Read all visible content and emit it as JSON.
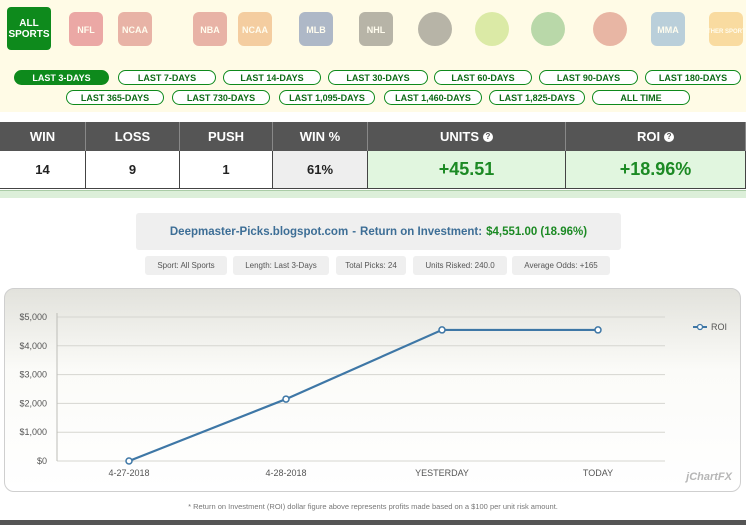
{
  "sports": {
    "active_label_line1": "ALL",
    "active_label_line2": "SPORTS",
    "items": [
      {
        "name": "nfl-icon",
        "text": "NFL",
        "color": "#c8102e"
      },
      {
        "name": "ncaa-football-icon",
        "text": "NCAA",
        "color": "#c03030"
      },
      {
        "name": "nba-icon",
        "text": "NBA",
        "color": "#c03030"
      },
      {
        "name": "ncaa-basketball-icon",
        "text": "NCAA",
        "color": "#e07a20"
      },
      {
        "name": "mlb-icon",
        "text": "MLB",
        "color": "#1a3d8f"
      },
      {
        "name": "nhl-icon",
        "text": "NHL",
        "color": "#333333"
      },
      {
        "name": "soccer-icon",
        "text": "",
        "color": "#333333"
      },
      {
        "name": "tennis-icon",
        "text": "",
        "color": "#9acd32"
      },
      {
        "name": "golf-icon",
        "text": "",
        "color": "#3a9a3a"
      },
      {
        "name": "boxing-icon",
        "text": "",
        "color": "#c0392b"
      },
      {
        "name": "mma-icon",
        "text": "MMA",
        "color": "#3b7fc4"
      },
      {
        "name": "other-sports-icon",
        "text": "OTHER SPORTS",
        "color": "#f0a020"
      }
    ]
  },
  "periods": [
    "LAST 3-DAYS",
    "LAST 7-DAYS",
    "LAST 14-DAYS",
    "LAST 30-DAYS",
    "LAST 60-DAYS",
    "LAST 90-DAYS",
    "LAST 180-DAYS",
    "LAST 365-DAYS",
    "LAST 730-DAYS",
    "LAST 1,095-DAYS",
    "LAST 1,460-DAYS",
    "LAST 1,825-DAYS",
    "ALL TIME"
  ],
  "active_period": "LAST 3-DAYS",
  "stats": {
    "headers": {
      "win": "WIN",
      "loss": "LOSS",
      "push": "PUSH",
      "winpct": "WIN %",
      "units": "UNITS",
      "roi": "ROI"
    },
    "values": {
      "win": "14",
      "loss": "9",
      "push": "1",
      "winpct": "61%",
      "units": "+45.51",
      "roi": "+18.96%"
    }
  },
  "roi_header": {
    "site": "Deepmaster-Picks.blogspot.com",
    "dash": "-",
    "label": "Return on Investment:",
    "value": "$4,551.00 (18.96%)"
  },
  "pills": {
    "sport": "Sport: All Sports",
    "length": "Length: Last 3-Days",
    "picks": "Total Picks: 24",
    "units": "Units Risked: 240.0",
    "odds": "Average Odds: +165"
  },
  "chart_data": {
    "type": "line",
    "categories": [
      "4-27-2018",
      "4-28-2018",
      "YESTERDAY",
      "TODAY"
    ],
    "series": [
      {
        "name": "ROI",
        "values": [
          0,
          2150,
          4551,
          4551
        ],
        "color": "#3e77a6"
      }
    ],
    "y_ticks": [
      "$0",
      "$1,000",
      "$2,000",
      "$3,000",
      "$4,000",
      "$5,000"
    ],
    "ylim": [
      0,
      5000
    ],
    "legend": "top-right",
    "grid": true
  },
  "branding": "jChartFX",
  "footnote": "* Return on Investment (ROI) dollar figure above represents profits made based on a $100 per unit risk amount."
}
